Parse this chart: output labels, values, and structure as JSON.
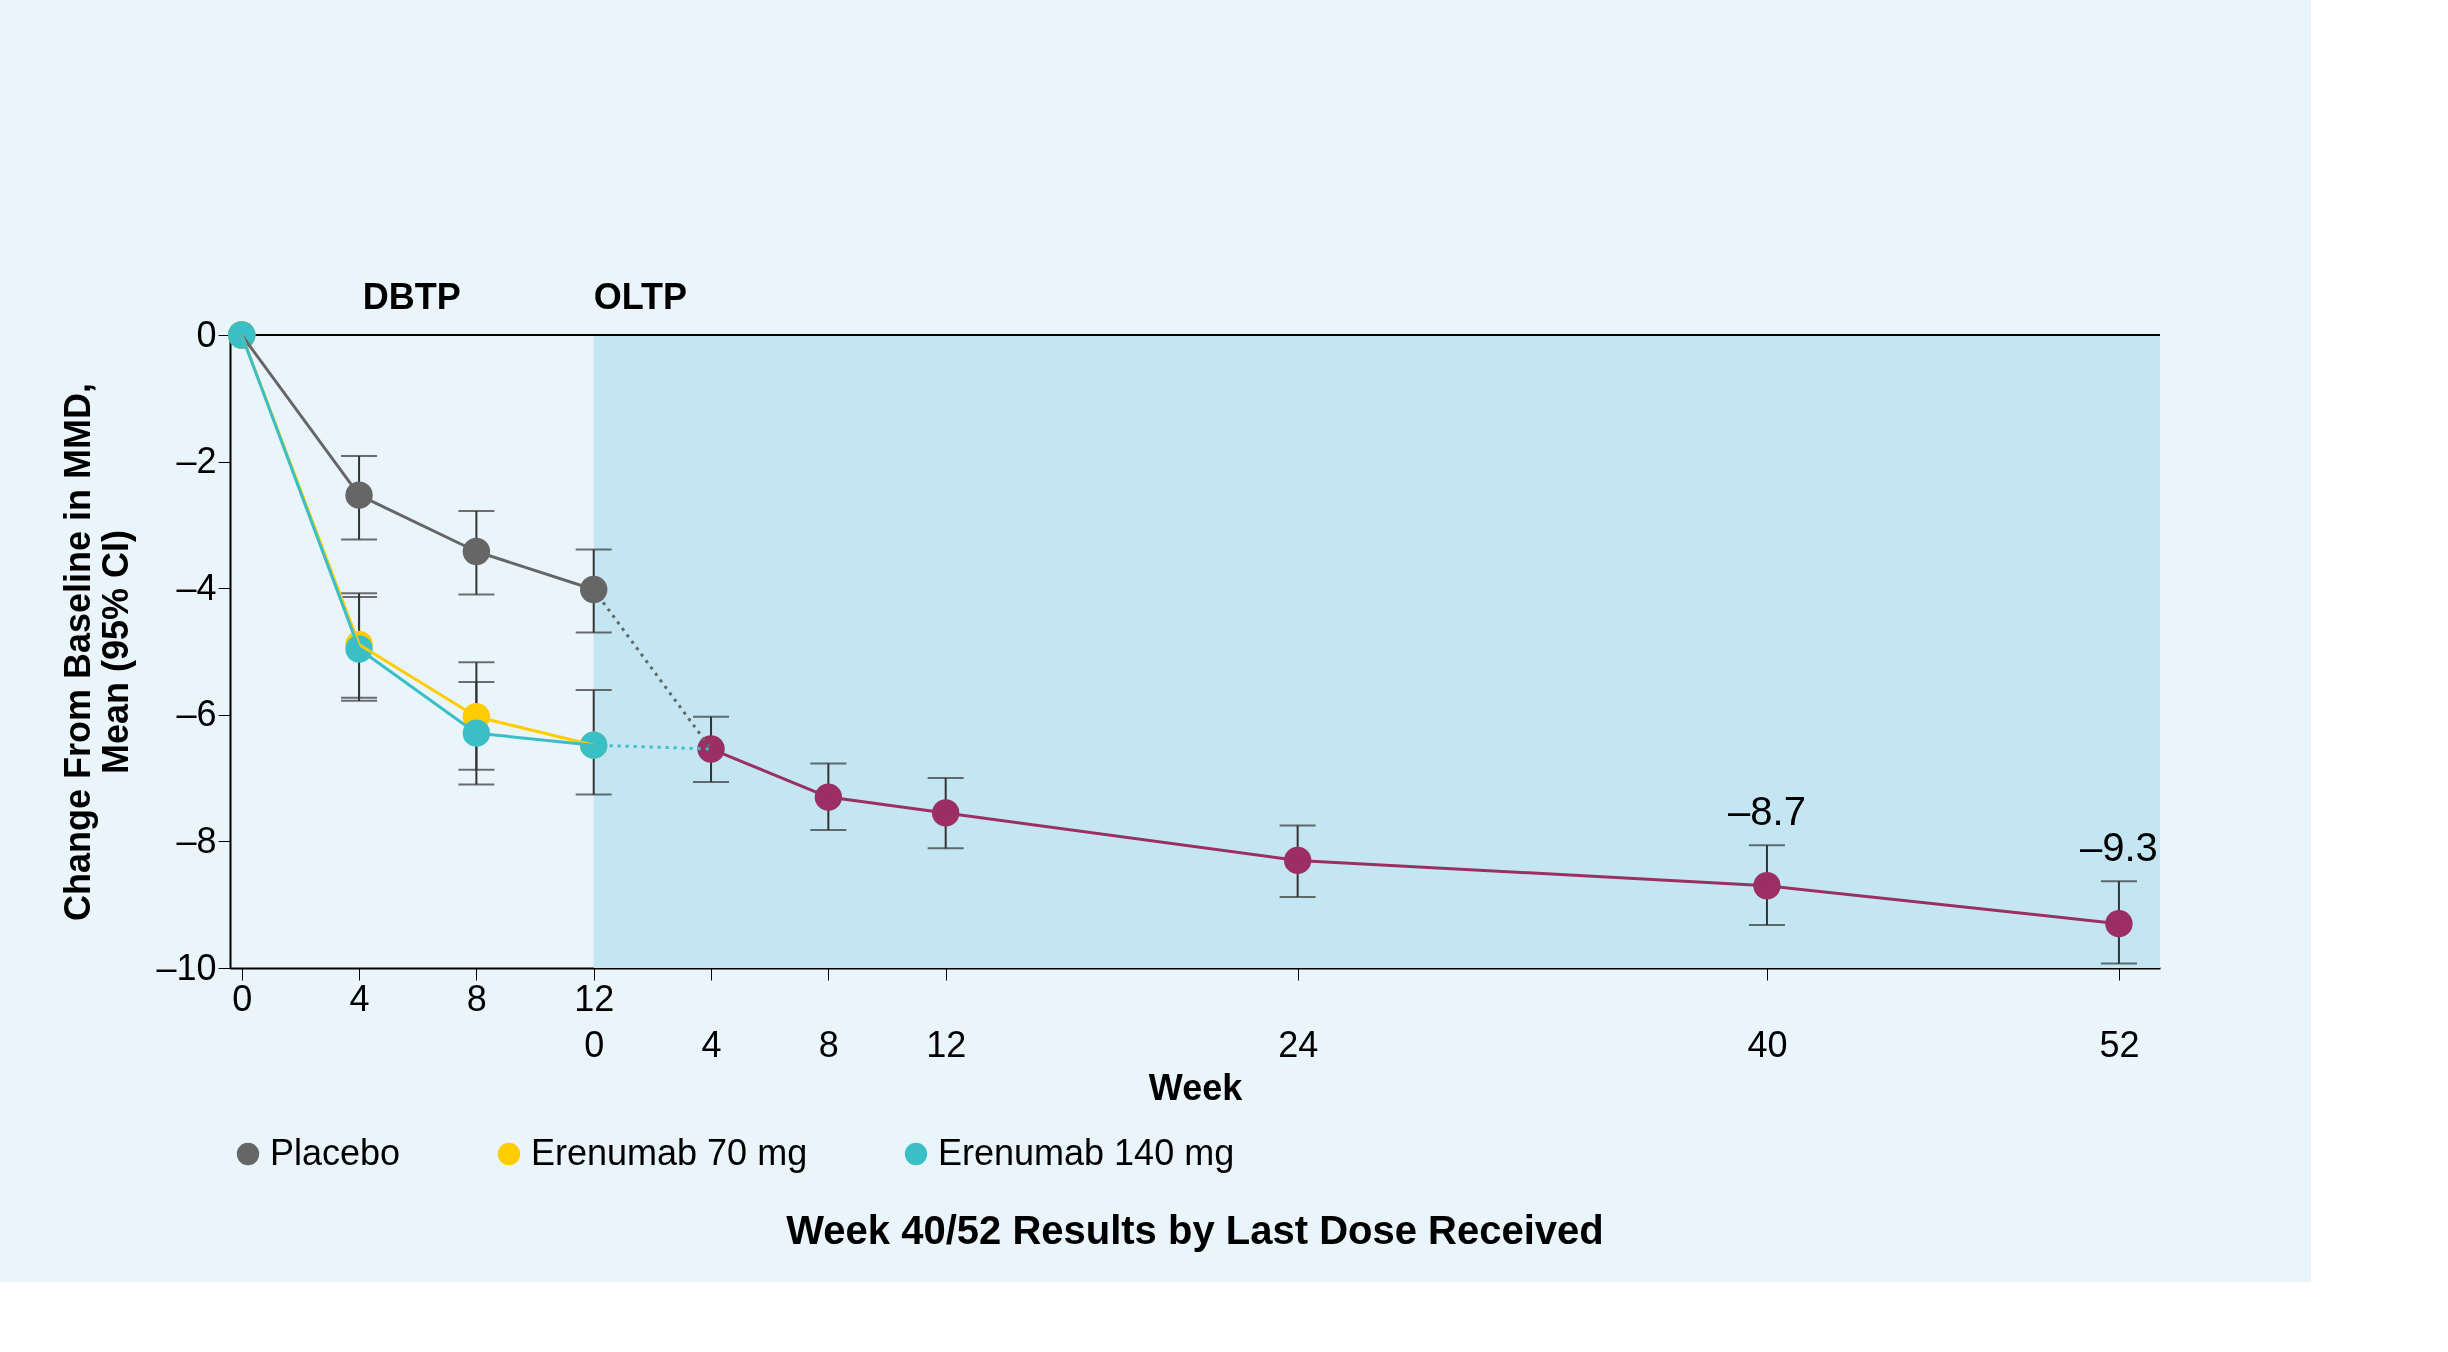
{
  "chart_data": {
    "type": "line",
    "title": "Week 40/52 Results by Last Dose Received",
    "xlabel": "Week",
    "ylabel": "Change From Baseline in MMD,\nMean (95% CI)",
    "xlim": [
      -0.4,
      65.4
    ],
    "xticks": [
      0,
      4,
      8,
      12
    ],
    "x2lim": [
      -12.4,
      53.4
    ],
    "x2ticks": [
      0,
      4,
      8,
      12,
      24,
      40,
      52
    ],
    "ylim": [
      -10,
      0
    ],
    "yticks": [
      {
        "value": 0,
        "label": "0"
      },
      {
        "value": -2,
        "label": "–2"
      },
      {
        "value": -4,
        "label": "–4"
      },
      {
        "value": -6,
        "label": "–6"
      },
      {
        "value": -8,
        "label": "–8"
      },
      {
        "value": -10,
        "label": "–10"
      }
    ],
    "grid": false,
    "legend": "bottom",
    "marker": "circle",
    "line_style": "solid",
    "ref_lines": [
      {
        "axis": "y",
        "value": 0,
        "color": "#000000"
      }
    ],
    "bands": [
      {
        "axis": "x",
        "from": 12,
        "to": 65.4,
        "label": "OLTP",
        "color": "#c3e6f2"
      }
    ],
    "annotations": [
      "DBTP"
    ],
    "series": [
      {
        "name": "Placebo",
        "color": "#666666",
        "x": [
          0,
          4,
          8,
          12
        ],
        "values": [
          0,
          -2.53,
          -3.42,
          -4.02
        ],
        "errors": [
          null,
          [
            -3.23,
            -1.91
          ],
          [
            -4.1,
            -2.78
          ],
          [
            -4.7,
            -3.39
          ]
        ]
      },
      {
        "name": "Erenumab 70 mg",
        "color": "#ffcc00",
        "x": [
          0,
          4,
          8,
          12
        ],
        "values": [
          0,
          -4.89,
          -6.03,
          -6.48
        ],
        "errors": [
          null,
          [
            -5.73,
            -4.08
          ],
          [
            -7.1,
            -5.17
          ],
          null
        ]
      },
      {
        "name": "Erenumab 140 mg",
        "color": "#3bbfc6",
        "x": [
          0,
          4,
          8,
          12
        ],
        "values": [
          0,
          -4.96,
          -6.29,
          -6.48
        ],
        "errors": [
          null,
          [
            -5.78,
            -4.14
          ],
          [
            -6.87,
            -5.48
          ],
          [
            -7.26,
            -5.61
          ]
        ]
      },
      {
        "color": "#666666",
        "x": [
          12,
          16
        ],
        "values": [
          -4.02,
          -6.54
        ],
        "line_style": "dotted",
        "marker": "none"
      },
      {
        "color": "#3bbfc6",
        "x": [
          12,
          16
        ],
        "values": [
          -6.48,
          -6.54
        ],
        "line_style": "dotted",
        "marker": "none"
      },
      {
        "color": "#9b2f63",
        "x": [
          16,
          20,
          24,
          36,
          52,
          64
        ],
        "values": [
          -6.54,
          -7.3,
          -7.55,
          -8.3,
          -8.7,
          -9.3
        ],
        "errors": [
          [
            -7.06,
            -6.03
          ],
          [
            -7.82,
            -6.77
          ],
          [
            -8.11,
            -7.0
          ],
          [
            -8.88,
            -7.75
          ],
          [
            -9.32,
            -8.06
          ],
          [
            -9.93,
            -8.63
          ]
        ],
        "value_labels": [
          null,
          null,
          null,
          null,
          "–8.7",
          "–9.3"
        ]
      }
    ]
  }
}
